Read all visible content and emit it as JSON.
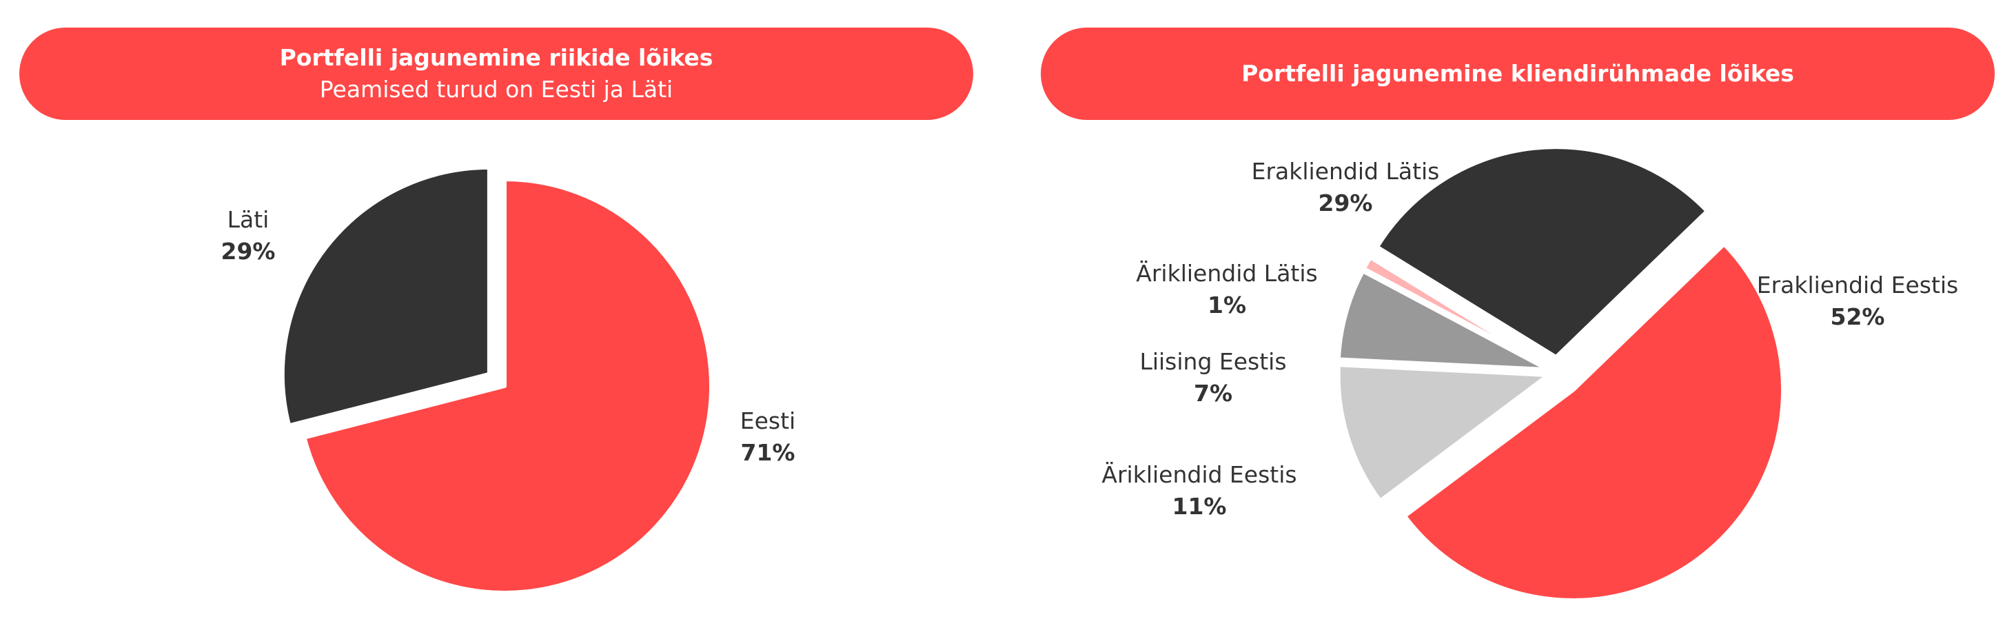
{
  "chart_data": [
    {
      "type": "pie",
      "title": "Portfelli jagunemine riikide lõikes",
      "subtitle": "Peamised turud on Eesti ja Läti",
      "slices": [
        {
          "label": "Eesti",
          "value": 71,
          "value_label": "71%",
          "color": "#ff4747"
        },
        {
          "label": "Läti",
          "value": 29,
          "value_label": "29%",
          "color": "#333333"
        }
      ]
    },
    {
      "type": "pie",
      "title": "Portfelli jagunemine kliendirühmade lõikes",
      "subtitle": "",
      "slices": [
        {
          "label": "Erakliendid Eestis",
          "value": 52,
          "value_label": "52%",
          "color": "#ff4747"
        },
        {
          "label": "Ärikliendid Eestis",
          "value": 11,
          "value_label": "11%",
          "color": "#cccccc"
        },
        {
          "label": "Liising Eestis",
          "value": 7,
          "value_label": "7%",
          "color": "#999999"
        },
        {
          "label": "Ärikliendid Lätis",
          "value": 1,
          "value_label": "1%",
          "color": "#ffb3b3"
        },
        {
          "label": "Erakliendid Lätis",
          "value": 29,
          "value_label": "29%",
          "color": "#333333"
        }
      ]
    }
  ]
}
